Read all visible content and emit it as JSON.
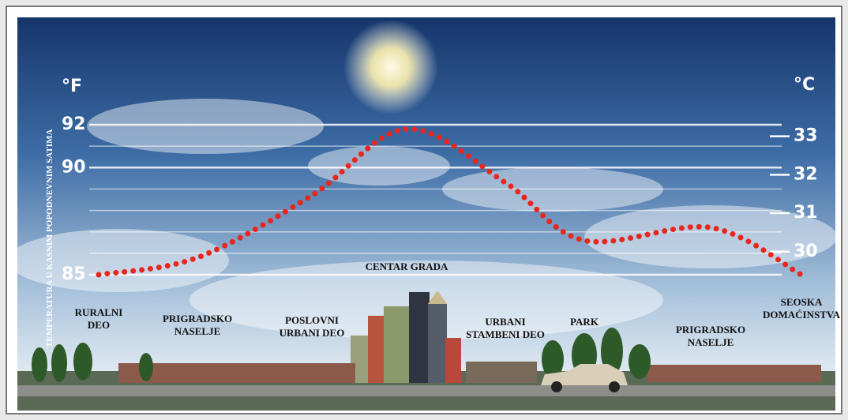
{
  "chart_data": {
    "type": "line",
    "y_axis_label": "TEMPERATURA U KASNIM POPODNEVNIM SATIMA",
    "y_unit": "°F",
    "y2_unit": "°C",
    "categories": [
      "RURALNI\nDEO",
      "PRIGRADSKO\nNASELJE",
      "POSLOVNI\nURBANI DEO",
      "CENTAR GRADA",
      "URBANI\nSTAMBENI DEO",
      "PARK",
      "PRIGRADSKO\nNASELJE",
      "SEOSKA\nDOMAĆINSTVA"
    ],
    "values": [
      85,
      85.8,
      88.7,
      91.8,
      89.3,
      86.6,
      87.2,
      85
    ],
    "color": "#e8261c",
    "ylim": [
      85,
      92
    ],
    "yticks": [
      85,
      90,
      92
    ],
    "minor_yticks": [
      86,
      87,
      88,
      89,
      91
    ],
    "y2lim": [
      29.4,
      33.3
    ],
    "y2ticks": [
      30,
      31,
      32,
      33
    ],
    "grid": true
  }
}
